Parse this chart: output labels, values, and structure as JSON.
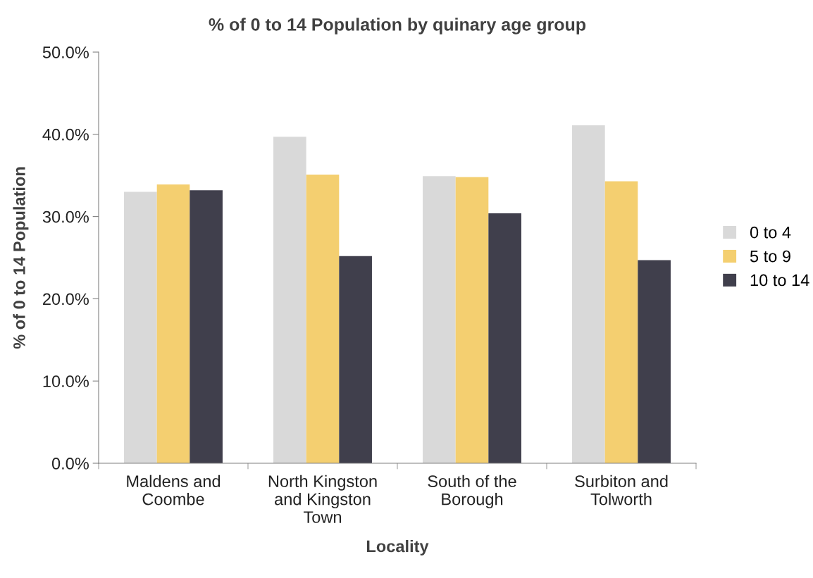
{
  "chart_data": {
    "type": "bar",
    "title": "% of 0 to 14 Population by quinary age group",
    "xlabel": "Locality",
    "ylabel": "% of 0 to 14 Population",
    "categories": [
      "Maldens and\nCoombe",
      "North Kingston\nand Kingston\nTown",
      "South of the\nBorough",
      "Surbiton and\nTolworth"
    ],
    "series": [
      {
        "name": "0 to 4",
        "color": "#d9d9d9",
        "values": [
          33.0,
          39.7,
          34.9,
          41.1
        ]
      },
      {
        "name": "5 to 9",
        "color": "#f4cf70",
        "values": [
          33.9,
          35.1,
          34.8,
          34.3
        ]
      },
      {
        "name": "10 to 14",
        "color": "#403f4c",
        "values": [
          33.2,
          25.2,
          30.4,
          24.7
        ]
      }
    ],
    "ylim": [
      0,
      50
    ],
    "yticks": [
      {
        "value": 0,
        "label": "0.0%"
      },
      {
        "value": 10,
        "label": "10.0%"
      },
      {
        "value": 20,
        "label": "20.0%"
      },
      {
        "value": 30,
        "label": "30.0%"
      },
      {
        "value": 40,
        "label": "40.0%"
      },
      {
        "value": 50,
        "label": "50.0%"
      }
    ],
    "grid": false,
    "legend": "right"
  }
}
